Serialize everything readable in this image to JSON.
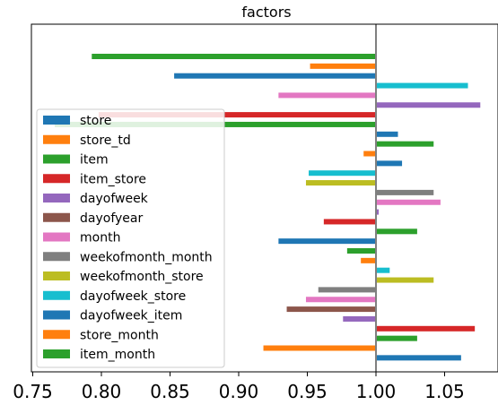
{
  "chart_data": {
    "type": "bar",
    "orientation": "horizontal",
    "title": "factors",
    "xlabel": "",
    "ylabel": "",
    "xlim": [
      0.75,
      1.09
    ],
    "xticks": [
      0.75,
      0.8,
      0.85,
      0.9,
      0.95,
      1.0,
      1.05
    ],
    "xtick_labels": [
      "0.75",
      "0.80",
      "0.85",
      "0.90",
      "0.95",
      "1.00",
      "1.05"
    ],
    "reference_line": 1.0,
    "grid": false,
    "legend_position": "left",
    "series": [
      {
        "name": "store",
        "color": "#1f77b4"
      },
      {
        "name": "store_td",
        "color": "#ff7f0e"
      },
      {
        "name": "item",
        "color": "#2ca02c"
      },
      {
        "name": "item_store",
        "color": "#d62728"
      },
      {
        "name": "dayofweek",
        "color": "#9467bd"
      },
      {
        "name": "dayofyear",
        "color": "#8c564b"
      },
      {
        "name": "month",
        "color": "#e377c2"
      },
      {
        "name": "weekofmonth_month",
        "color": "#7f7f7f"
      },
      {
        "name": "weekofmonth_store",
        "color": "#bcbd22"
      },
      {
        "name": "dayofweek_store",
        "color": "#17becf"
      },
      {
        "name": "dayofweek_item",
        "color": "#1f77b4"
      },
      {
        "name": "store_month",
        "color": "#ff7f0e"
      },
      {
        "name": "item_month",
        "color": "#2ca02c"
      }
    ],
    "bars": [
      {
        "series": "item",
        "value": 0.793
      },
      {
        "series": "store_td",
        "value": 0.952
      },
      {
        "series": "store",
        "value": 0.853
      },
      {
        "series": "dayofweek_store",
        "value": 1.067
      },
      {
        "series": "month",
        "value": 0.929
      },
      {
        "series": "dayofweek",
        "value": 1.076
      },
      {
        "series": "item_store",
        "value": 0.798
      },
      {
        "series": "item",
        "value": 0.766
      },
      {
        "series": "store",
        "value": 1.016
      },
      {
        "series": "item",
        "value": 1.042
      },
      {
        "series": "store_td",
        "value": 0.991
      },
      {
        "series": "store",
        "value": 1.019
      },
      {
        "series": "dayofweek_store",
        "value": 0.951
      },
      {
        "series": "weekofmonth_store",
        "value": 0.949
      },
      {
        "series": "weekofmonth_month",
        "value": 1.042
      },
      {
        "series": "month",
        "value": 1.047
      },
      {
        "series": "dayofweek",
        "value": 1.002
      },
      {
        "series": "item_store",
        "value": 0.962
      },
      {
        "series": "item",
        "value": 1.03
      },
      {
        "series": "store",
        "value": 0.929
      },
      {
        "series": "item",
        "value": 0.979
      },
      {
        "series": "store_td",
        "value": 0.989
      },
      {
        "series": "dayofweek_store",
        "value": 1.01
      },
      {
        "series": "weekofmonth_store",
        "value": 1.042
      },
      {
        "series": "weekofmonth_month",
        "value": 0.958
      },
      {
        "series": "month",
        "value": 0.949
      },
      {
        "series": "dayofyear",
        "value": 0.935
      },
      {
        "series": "dayofweek",
        "value": 0.976
      },
      {
        "series": "item_store",
        "value": 1.072
      },
      {
        "series": "item",
        "value": 1.03
      },
      {
        "series": "store_td",
        "value": 0.918
      },
      {
        "series": "store",
        "value": 1.062
      }
    ]
  }
}
